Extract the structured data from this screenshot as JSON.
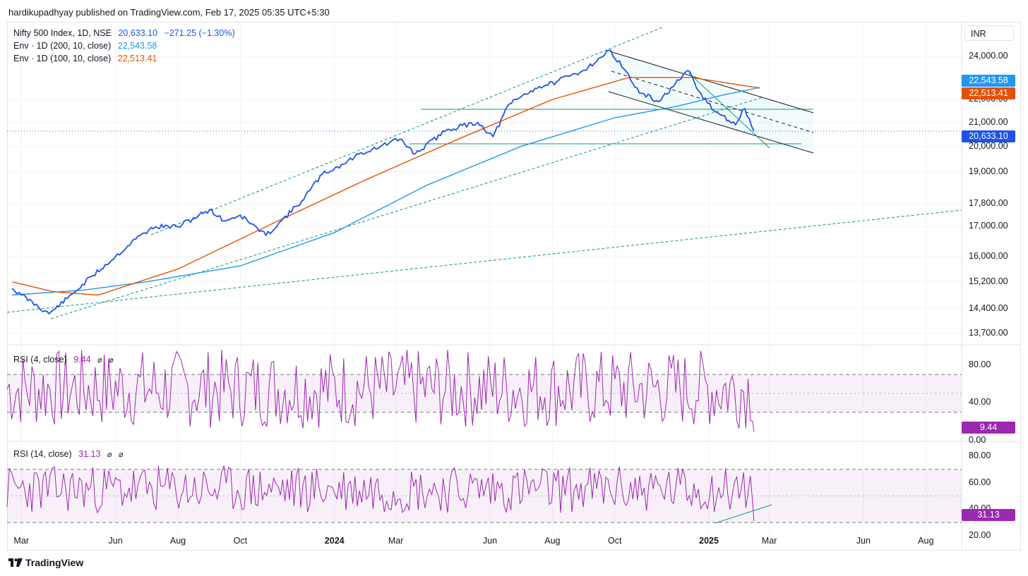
{
  "header": {
    "publisher_line": "hardikupadhyay published on TradingView.com, Feb 17, 2025 05:35 UTC+5:30"
  },
  "currency_button": "INR",
  "brand": "TradingView",
  "legend": {
    "main": {
      "label": "Nifty 500 Index, 1D, NSE",
      "value": "20,633.10",
      "change": "−271.25 (−1.30%)"
    },
    "env200": {
      "label": "Env · 1D (200, 10, close)",
      "value": "22,543.58"
    },
    "env100": {
      "label": "Env · 1D (100, 10, close)",
      "value": "22,513.41"
    },
    "rsi4": {
      "label": "RSI (4, close)",
      "value": "9.44"
    },
    "rsi14": {
      "label": "RSI (14, close)",
      "value": "31.13"
    },
    "eye_icon": "⌀"
  },
  "price_tags": {
    "env200": "22,543.58",
    "env100": "22,513.41",
    "last": "20,633.10",
    "rsi4": "9.44",
    "rsi14": "31.13"
  },
  "colors": {
    "price": "#1e53e5",
    "env200": "#2196f3",
    "env100": "#e65100",
    "rsi": "#9c27b0",
    "trend": "#089981",
    "channel": "#131722"
  },
  "chart_data": [
    {
      "type": "line",
      "title": "Nifty 500 Index, 1D, NSE",
      "x_ticks": [
        "Mar",
        "Jun",
        "Aug",
        "Oct",
        "2024",
        "Mar",
        "Jun",
        "Aug",
        "Oct",
        "2025",
        "Mar",
        "Jun",
        "Aug"
      ],
      "y_ticks": [
        "24,000.00",
        "22,000.00",
        "21,000.00",
        "20,000.00",
        "19,000.00",
        "17,800.00",
        "17,000.00",
        "16,000.00",
        "15,200.00",
        "14,400.00",
        "13,700.00"
      ],
      "y_scale": "log",
      "ylim": [
        13400,
        25600
      ],
      "series": [
        {
          "name": "Nifty 500 Index",
          "x": [
            "2023-02-20",
            "2023-03-01",
            "2023-03-28",
            "2023-04-15",
            "2023-05-10",
            "2023-06-01",
            "2023-06-25",
            "2023-07-10",
            "2023-08-01",
            "2023-09-01",
            "2023-09-15",
            "2023-10-01",
            "2023-10-26",
            "2023-11-10",
            "2023-11-30",
            "2023-12-20",
            "2024-01-10",
            "2024-01-25",
            "2024-02-15",
            "2024-03-05",
            "2024-03-20",
            "2024-04-20",
            "2024-05-20",
            "2024-06-04",
            "2024-06-20",
            "2024-07-15",
            "2024-08-05",
            "2024-08-30",
            "2024-09-27",
            "2024-10-10",
            "2024-10-25",
            "2024-11-13",
            "2024-11-29",
            "2024-12-13",
            "2024-12-20",
            "2025-01-06",
            "2025-01-27",
            "2025-02-05",
            "2025-02-14"
          ],
          "values": [
            15000,
            14800,
            14250,
            14700,
            15400,
            16000,
            16700,
            17000,
            17000,
            17600,
            17200,
            17400,
            16700,
            17200,
            17900,
            18900,
            19300,
            19700,
            20000,
            20300,
            19700,
            20700,
            21000,
            20400,
            21800,
            22500,
            22800,
            23300,
            24300,
            23400,
            22300,
            21900,
            22700,
            23300,
            22500,
            21500,
            20900,
            21600,
            20633.1
          ]
        },
        {
          "name": "Env (200, 10, close)",
          "x": [
            "2023-02-20",
            "2023-05-01",
            "2023-07-01",
            "2023-10-01",
            "2024-01-01",
            "2024-04-01",
            "2024-07-01",
            "2024-10-01",
            "2024-12-01",
            "2025-01-15",
            "2025-02-20"
          ],
          "values": [
            14800,
            14950,
            15200,
            15700,
            16800,
            18500,
            20000,
            21200,
            21700,
            22200,
            22543.58
          ]
        },
        {
          "name": "Env (100, 10, close)",
          "x": [
            "2023-02-20",
            "2023-04-01",
            "2023-05-15",
            "2023-08-01",
            "2023-11-01",
            "2024-02-01",
            "2024-05-01",
            "2024-08-01",
            "2024-10-15",
            "2024-12-15",
            "2025-02-20"
          ],
          "values": [
            15200,
            14900,
            14800,
            15600,
            17100,
            18700,
            20300,
            22000,
            23000,
            23000,
            22513.41
          ]
        }
      ]
    },
    {
      "type": "line",
      "title": "RSI (4, close)",
      "y_ticks": [
        "80.00",
        "40.00",
        "0.00"
      ],
      "ylim": [
        0,
        100
      ],
      "levels": [
        70,
        50,
        30
      ],
      "series": [
        {
          "name": "RSI (4, close)",
          "last_value": 9.44
        }
      ]
    },
    {
      "type": "line",
      "title": "RSI (14, close)",
      "y_ticks": [
        "80.00",
        "60.00",
        "40.00",
        "20.00"
      ],
      "ylim": [
        20,
        90
      ],
      "levels": [
        70,
        50,
        30
      ],
      "series": [
        {
          "name": "RSI (14, close)",
          "last_value": 31.13
        }
      ]
    }
  ]
}
